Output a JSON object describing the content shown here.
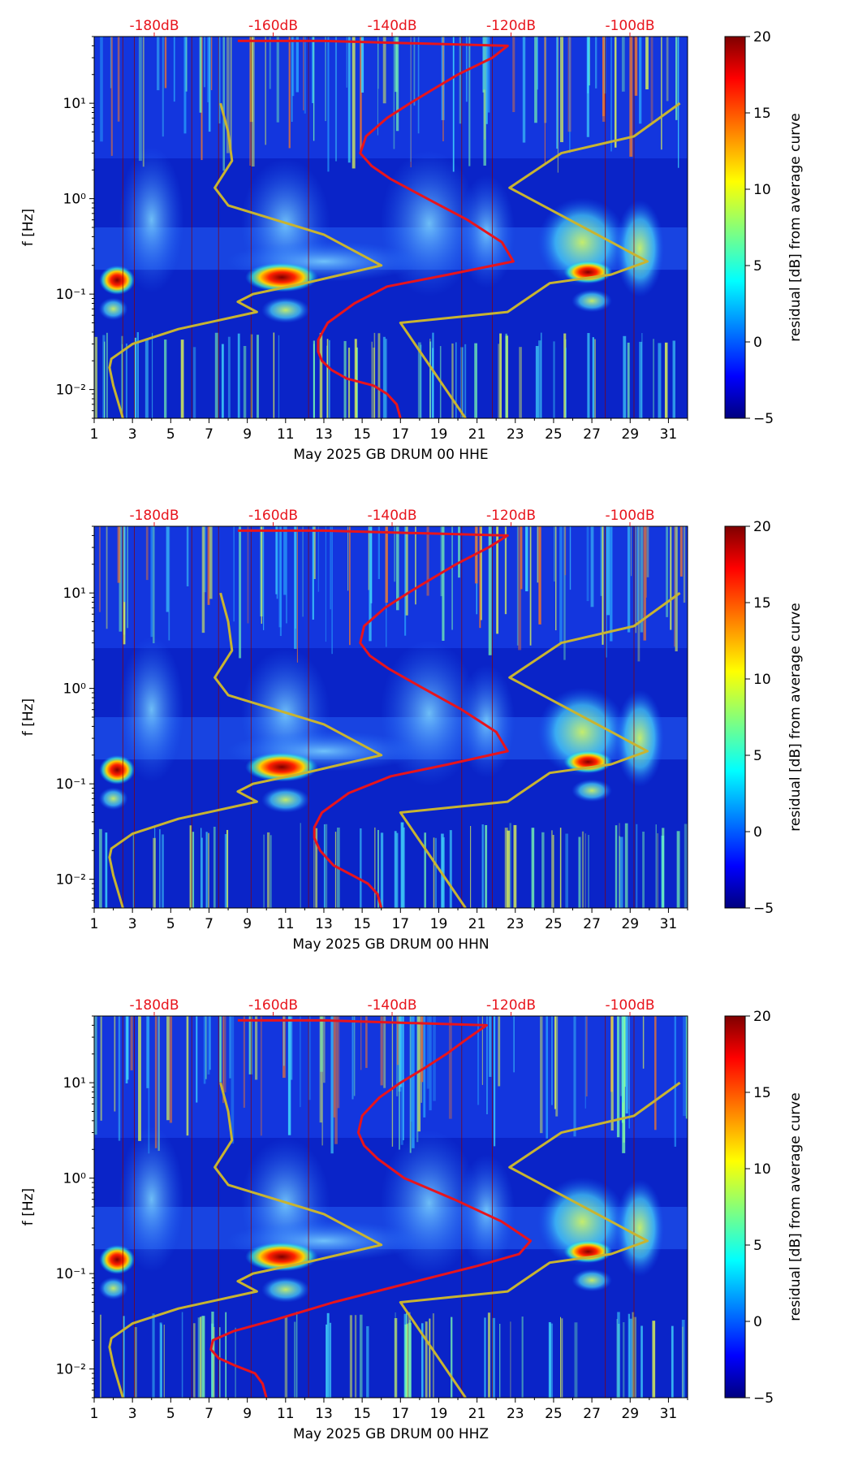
{
  "chart_data": [
    {
      "type": "heatmap",
      "xlabel": "May 2025 GB DRUM 00 HHE",
      "ylabel": "f [Hz]",
      "x_ticks": [
        "1",
        "3",
        "5",
        "7",
        "9",
        "11",
        "13",
        "15",
        "17",
        "19",
        "21",
        "23",
        "25",
        "27",
        "29",
        "31"
      ],
      "y_ticks": [
        "10⁻²",
        "10⁻¹",
        "10⁰",
        "10¹"
      ],
      "top_ticks": [
        "-180dB",
        "-160dB",
        "-140dB",
        "-120dB",
        "-100dB"
      ],
      "colorbar": {
        "label": "residual [dB] from average curve",
        "ticks": [
          "−5",
          "0",
          "5",
          "10",
          "15",
          "20"
        ],
        "range": [
          -5,
          20
        ]
      },
      "xlim": [
        1,
        32
      ],
      "ylim": [
        0.005,
        50
      ],
      "yscale": "log",
      "series": [
        {
          "color": "#e8141c",
          "points": [
            [
              17.0,
              0.005
            ],
            [
              16.8,
              0.007
            ],
            [
              16.3,
              0.009
            ],
            [
              15.6,
              0.011
            ],
            [
              14.2,
              0.013
            ],
            [
              13.4,
              0.016
            ],
            [
              12.9,
              0.02
            ],
            [
              12.7,
              0.025
            ],
            [
              12.7,
              0.033
            ],
            [
              13.2,
              0.05
            ],
            [
              14.6,
              0.08
            ],
            [
              16.3,
              0.12
            ],
            [
              19.5,
              0.16
            ],
            [
              22.9,
              0.22
            ],
            [
              22.3,
              0.35
            ],
            [
              20.5,
              0.6
            ],
            [
              18.4,
              1.0
            ],
            [
              16.5,
              1.6
            ],
            [
              15.5,
              2.2
            ],
            [
              14.9,
              3.0
            ],
            [
              15.2,
              4.5
            ],
            [
              16.3,
              7.0
            ],
            [
              17.5,
              10.0
            ],
            [
              18.7,
              14.0
            ],
            [
              20.0,
              20.0
            ],
            [
              21.8,
              30.0
            ],
            [
              22.6,
              40.0
            ],
            [
              13.0,
              45.0
            ],
            [
              8.5,
              45.0
            ]
          ]
        },
        {
          "color": "#c8b431",
          "points": [
            [
              2.5,
              0.005
            ],
            [
              2.0,
              0.011
            ],
            [
              1.8,
              0.017
            ],
            [
              1.9,
              0.021
            ],
            [
              3.0,
              0.03
            ],
            [
              5.4,
              0.043
            ],
            [
              9.5,
              0.065
            ],
            [
              8.5,
              0.083
            ],
            [
              9.3,
              0.1
            ],
            [
              12.0,
              0.13
            ],
            [
              16.0,
              0.2
            ],
            [
              13.0,
              0.42
            ],
            [
              8.0,
              0.85
            ],
            [
              7.3,
              1.3
            ],
            [
              8.2,
              2.5
            ],
            [
              8.0,
              5.0
            ],
            [
              7.6,
              10.0
            ]
          ]
        },
        {
          "color": "#c8b431",
          "points": [
            [
              20.4,
              0.005
            ],
            [
              17.0,
              0.05
            ],
            [
              22.6,
              0.065
            ],
            [
              24.8,
              0.13
            ],
            [
              28.0,
              0.16
            ],
            [
              29.9,
              0.22
            ],
            [
              22.7,
              1.3
            ],
            [
              25.4,
              3.0
            ],
            [
              29.2,
              4.5
            ],
            [
              31.6,
              10.0
            ]
          ]
        }
      ]
    },
    {
      "type": "heatmap",
      "xlabel": "May 2025 GB DRUM 00 HHN",
      "ylabel": "f [Hz]",
      "x_ticks": [
        "1",
        "3",
        "5",
        "7",
        "9",
        "11",
        "13",
        "15",
        "17",
        "19",
        "21",
        "23",
        "25",
        "27",
        "29",
        "31"
      ],
      "y_ticks": [
        "10⁻²",
        "10⁻¹",
        "10⁰",
        "10¹"
      ],
      "top_ticks": [
        "-180dB",
        "-160dB",
        "-140dB",
        "-120dB",
        "-100dB"
      ],
      "colorbar": {
        "label": "residual [dB] from average curve",
        "ticks": [
          "−5",
          "0",
          "5",
          "10",
          "15",
          "20"
        ],
        "range": [
          -5,
          20
        ]
      },
      "xlim": [
        1,
        32
      ],
      "ylim": [
        0.005,
        50
      ],
      "yscale": "log",
      "series": [
        {
          "color": "#e8141c",
          "points": [
            [
              16.0,
              0.005
            ],
            [
              15.8,
              0.007
            ],
            [
              15.3,
              0.009
            ],
            [
              14.5,
              0.011
            ],
            [
              13.5,
              0.014
            ],
            [
              12.8,
              0.02
            ],
            [
              12.5,
              0.027
            ],
            [
              12.5,
              0.035
            ],
            [
              12.9,
              0.05
            ],
            [
              14.3,
              0.08
            ],
            [
              16.5,
              0.12
            ],
            [
              19.5,
              0.16
            ],
            [
              22.6,
              0.22
            ],
            [
              22.0,
              0.35
            ],
            [
              20.2,
              0.6
            ],
            [
              18.2,
              1.0
            ],
            [
              16.4,
              1.6
            ],
            [
              15.4,
              2.2
            ],
            [
              14.9,
              3.0
            ],
            [
              15.1,
              4.5
            ],
            [
              16.2,
              7.0
            ],
            [
              17.4,
              10.0
            ],
            [
              18.6,
              14.0
            ],
            [
              19.9,
              20.0
            ],
            [
              21.6,
              30.0
            ],
            [
              22.6,
              40.0
            ],
            [
              13.0,
              45.0
            ],
            [
              8.5,
              45.0
            ]
          ]
        },
        {
          "color": "#c8b431",
          "points": [
            [
              2.5,
              0.005
            ],
            [
              2.0,
              0.011
            ],
            [
              1.8,
              0.017
            ],
            [
              1.9,
              0.021
            ],
            [
              3.0,
              0.03
            ],
            [
              5.4,
              0.043
            ],
            [
              9.5,
              0.065
            ],
            [
              8.5,
              0.083
            ],
            [
              9.3,
              0.1
            ],
            [
              12.0,
              0.13
            ],
            [
              16.0,
              0.2
            ],
            [
              13.0,
              0.42
            ],
            [
              8.0,
              0.85
            ],
            [
              7.3,
              1.3
            ],
            [
              8.2,
              2.5
            ],
            [
              8.0,
              5.0
            ],
            [
              7.6,
              10.0
            ]
          ]
        },
        {
          "color": "#c8b431",
          "points": [
            [
              20.4,
              0.005
            ],
            [
              17.0,
              0.05
            ],
            [
              22.6,
              0.065
            ],
            [
              24.8,
              0.13
            ],
            [
              28.0,
              0.16
            ],
            [
              29.9,
              0.22
            ],
            [
              22.7,
              1.3
            ],
            [
              25.4,
              3.0
            ],
            [
              29.2,
              4.5
            ],
            [
              31.6,
              10.0
            ]
          ]
        }
      ]
    },
    {
      "type": "heatmap",
      "xlabel": "May 2025 GB DRUM 00 HHZ",
      "ylabel": "f [Hz]",
      "x_ticks": [
        "1",
        "3",
        "5",
        "7",
        "9",
        "11",
        "13",
        "15",
        "17",
        "19",
        "21",
        "23",
        "25",
        "27",
        "29",
        "31"
      ],
      "y_ticks": [
        "10⁻²",
        "10⁻¹",
        "10⁰",
        "10¹"
      ],
      "top_ticks": [
        "-180dB",
        "-160dB",
        "-140dB",
        "-120dB",
        "-100dB"
      ],
      "colorbar": {
        "label": "residual [dB] from average curve",
        "ticks": [
          "−5",
          "0",
          "5",
          "10",
          "15",
          "20"
        ],
        "range": [
          -5,
          20
        ]
      },
      "xlim": [
        1,
        32
      ],
      "ylim": [
        0.005,
        50
      ],
      "yscale": "log",
      "series": [
        {
          "color": "#e8141c",
          "points": [
            [
              10.0,
              0.005
            ],
            [
              9.8,
              0.007
            ],
            [
              9.4,
              0.009
            ],
            [
              8.3,
              0.011
            ],
            [
              7.5,
              0.013
            ],
            [
              7.1,
              0.016
            ],
            [
              7.2,
              0.02
            ],
            [
              8.3,
              0.025
            ],
            [
              10.5,
              0.033
            ],
            [
              13.5,
              0.05
            ],
            [
              17.5,
              0.08
            ],
            [
              21.0,
              0.12
            ],
            [
              23.2,
              0.16
            ],
            [
              23.8,
              0.22
            ],
            [
              22.3,
              0.35
            ],
            [
              19.8,
              0.6
            ],
            [
              17.2,
              1.0
            ],
            [
              15.8,
              1.6
            ],
            [
              15.1,
              2.2
            ],
            [
              14.8,
              3.0
            ],
            [
              15.0,
              4.5
            ],
            [
              15.9,
              7.0
            ],
            [
              17.0,
              10.0
            ],
            [
              18.2,
              14.0
            ],
            [
              19.4,
              20.0
            ],
            [
              20.6,
              30.0
            ],
            [
              21.5,
              40.0
            ],
            [
              13.0,
              45.0
            ],
            [
              8.5,
              45.0
            ]
          ]
        },
        {
          "color": "#c8b431",
          "points": [
            [
              2.5,
              0.005
            ],
            [
              2.0,
              0.011
            ],
            [
              1.8,
              0.017
            ],
            [
              1.9,
              0.021
            ],
            [
              3.0,
              0.03
            ],
            [
              5.4,
              0.043
            ],
            [
              9.5,
              0.065
            ],
            [
              8.5,
              0.083
            ],
            [
              9.3,
              0.1
            ],
            [
              12.0,
              0.13
            ],
            [
              16.0,
              0.2
            ],
            [
              13.0,
              0.42
            ],
            [
              8.0,
              0.85
            ],
            [
              7.3,
              1.3
            ],
            [
              8.2,
              2.5
            ],
            [
              8.0,
              5.0
            ],
            [
              7.6,
              10.0
            ]
          ]
        },
        {
          "color": "#c8b431",
          "points": [
            [
              20.4,
              0.005
            ],
            [
              17.0,
              0.05
            ],
            [
              22.6,
              0.065
            ],
            [
              24.8,
              0.13
            ],
            [
              28.0,
              0.16
            ],
            [
              29.9,
              0.22
            ],
            [
              22.7,
              1.3
            ],
            [
              25.4,
              3.0
            ],
            [
              29.2,
              4.5
            ],
            [
              31.6,
              10.0
            ]
          ]
        }
      ]
    }
  ]
}
